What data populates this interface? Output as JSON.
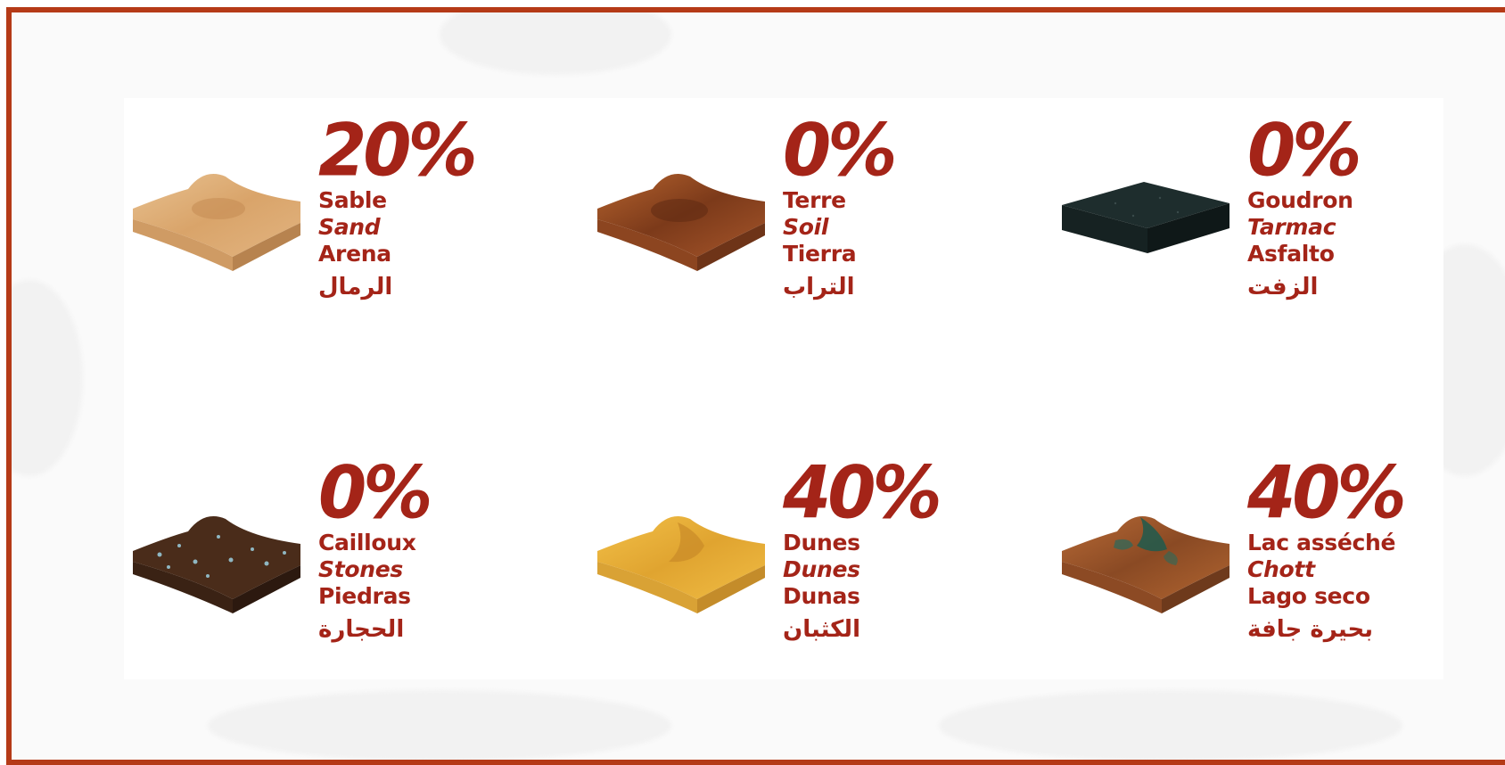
{
  "colors": {
    "frame": "#b53a17",
    "text": "#a42418",
    "background": "#fafafa"
  },
  "terrains": [
    {
      "percent": "20%",
      "fr": "Sable",
      "en": "Sand",
      "es": "Arena",
      "ar": "الرمال",
      "icon": "sand-tile-icon"
    },
    {
      "percent": "0%",
      "fr": "Terre",
      "en": "Soil",
      "es": "Tierra",
      "ar": "التراب",
      "icon": "soil-tile-icon"
    },
    {
      "percent": "0%",
      "fr": "Goudron",
      "en": "Tarmac",
      "es": "Asfalto",
      "ar": "الزفت",
      "icon": "tarmac-tile-icon"
    },
    {
      "percent": "0%",
      "fr": "Cailloux",
      "en": "Stones",
      "es": "Piedras",
      "ar": "الحجارة",
      "icon": "stones-tile-icon"
    },
    {
      "percent": "40%",
      "fr": "Dunes",
      "en": "Dunes",
      "es": "Dunas",
      "ar": "الكثبان",
      "icon": "dunes-tile-icon"
    },
    {
      "percent": "40%",
      "fr": "Lac asséché",
      "en": "Chott",
      "es": "Lago seco",
      "ar": "بحيرة جافة",
      "icon": "chott-tile-icon"
    }
  ]
}
